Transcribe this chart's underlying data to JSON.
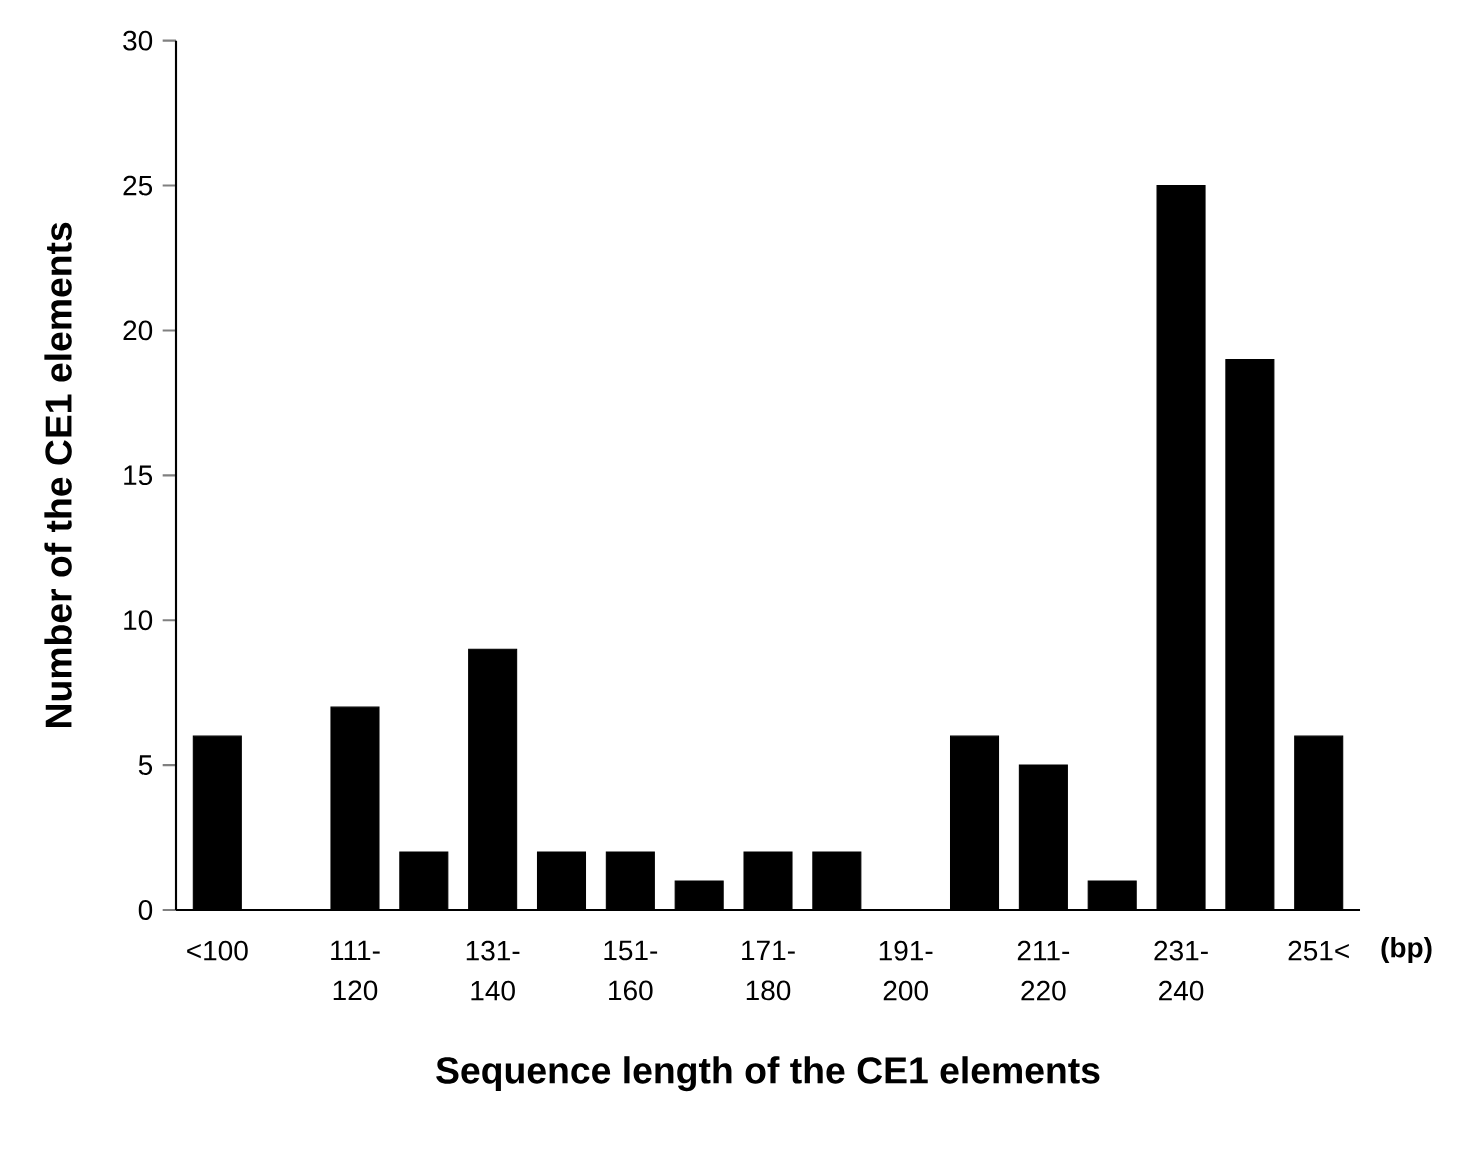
{
  "chart_data": {
    "type": "bar",
    "xlabel": "Sequence length of the CE1 elements",
    "ylabel": "Number of the CE1 elements",
    "categories": [
      "<100",
      null,
      "111-120",
      null,
      "131-140",
      null,
      "151-160",
      null,
      "171-180",
      null,
      "191-200",
      null,
      "211-220",
      null,
      "231-240",
      null,
      "251<"
    ],
    "values": [
      6,
      0,
      7,
      2,
      9,
      2,
      2,
      1,
      2,
      2,
      0,
      6,
      5,
      1,
      25,
      19,
      6
    ],
    "color": "#000000",
    "ylim": [
      0,
      30
    ],
    "yticks": [
      0,
      5,
      10,
      15,
      20,
      25,
      30
    ],
    "grid": false,
    "annotations": [
      "(bp)"
    ]
  }
}
